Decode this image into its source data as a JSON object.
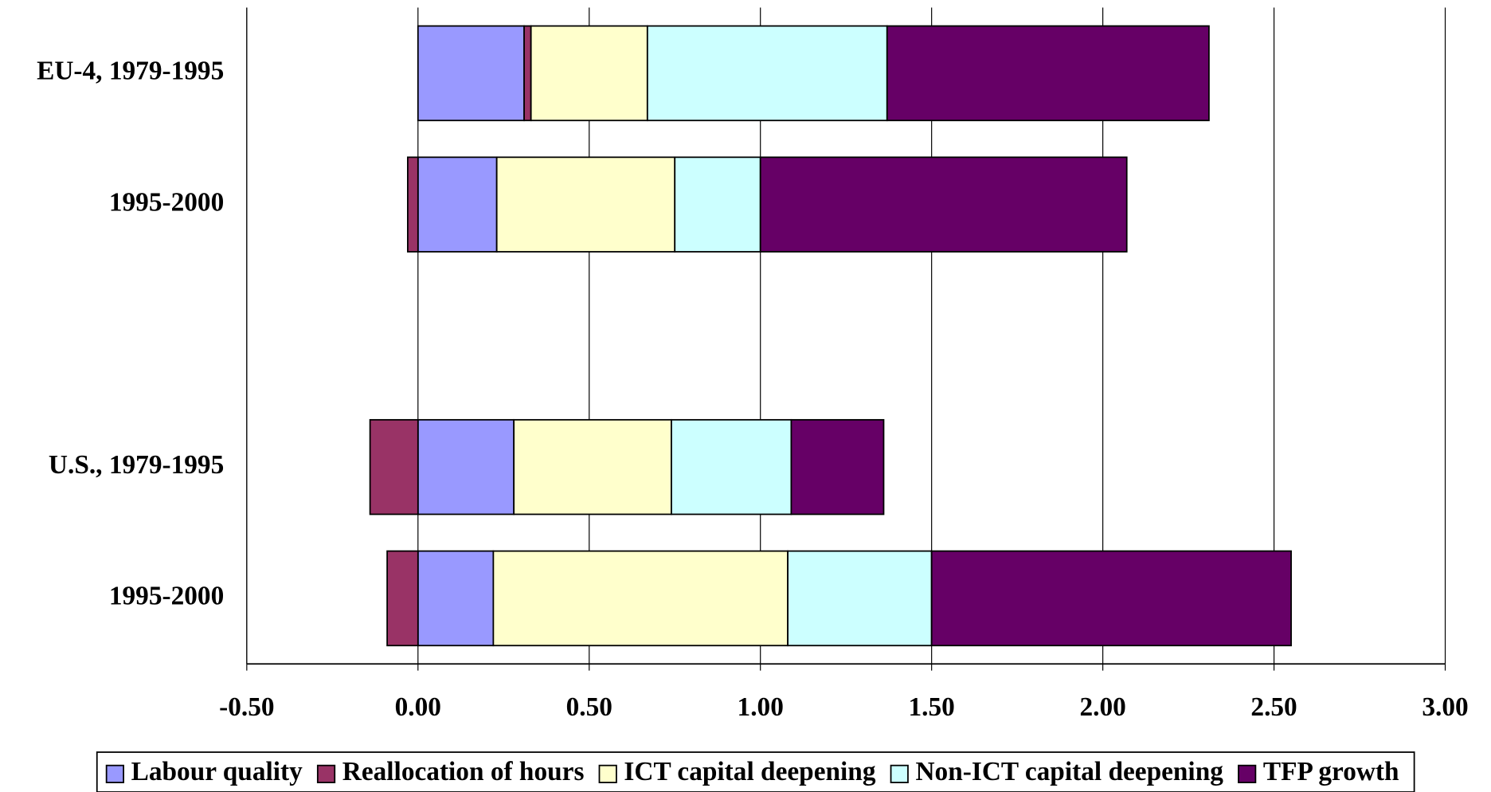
{
  "chart_data": {
    "type": "bar",
    "orientation": "horizontal",
    "stacked": true,
    "categories": [
      "EU-4, 1979-1995",
      "1995-2000",
      null,
      "U.S., 1979-1995",
      "1995-2000"
    ],
    "series": [
      {
        "name": "Labour quality",
        "color": "#9999ff",
        "values": [
          0.31,
          0.23,
          null,
          0.28,
          0.22
        ]
      },
      {
        "name": "Reallocation of hours",
        "color": "#993366",
        "values": [
          0.02,
          -0.03,
          null,
          -0.14,
          -0.09
        ]
      },
      {
        "name": "ICT capital deepening",
        "color": "#ffffcc",
        "values": [
          0.34,
          0.52,
          null,
          0.46,
          0.86
        ]
      },
      {
        "name": "Non-ICT capital deepening",
        "color": "#ccffff",
        "values": [
          0.7,
          0.25,
          null,
          0.35,
          0.42
        ]
      },
      {
        "name": "TFP growth",
        "color": "#660066",
        "values": [
          0.94,
          1.07,
          null,
          0.27,
          1.05
        ]
      }
    ],
    "xlim": [
      -0.5,
      3.0
    ],
    "xticks": [
      {
        "value": -0.5,
        "label": "-0.50"
      },
      {
        "value": 0,
        "label": "0.00"
      },
      {
        "value": 0.5,
        "label": "0.50"
      },
      {
        "value": 1,
        "label": "1.00"
      },
      {
        "value": 1.5,
        "label": "1.50"
      },
      {
        "value": 2,
        "label": "2.00"
      },
      {
        "value": 2.5,
        "label": "2.50"
      },
      {
        "value": 3,
        "label": "3.00"
      }
    ],
    "grid": true,
    "legend": "bottom"
  }
}
